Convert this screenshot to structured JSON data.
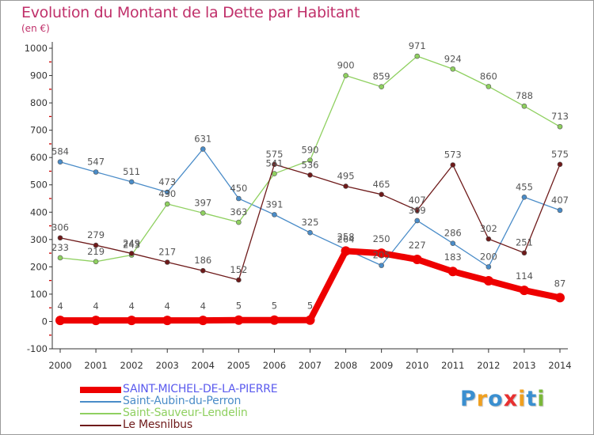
{
  "header": {
    "title": "Evolution du Montant de la Dette par Habitant",
    "subtitle": "(en €)"
  },
  "logo": {
    "text": "Proxiti",
    "colors": [
      "#3a8fd0",
      "#f0a020",
      "#3a8fd0",
      "#e83030",
      "#f0a020",
      "#3a8fd0",
      "#7ab83a"
    ]
  },
  "colors": {
    "title": "#c0306a",
    "axis": "#333333",
    "grid_tick": "#cc0000",
    "labels": "#555555"
  },
  "chart_data": {
    "type": "line",
    "title": "Evolution du Montant de la Dette par Habitant",
    "subtitle": "(en €)",
    "xlabel": "",
    "ylabel": "",
    "x": [
      "2000",
      "2001",
      "2002",
      "2003",
      "2004",
      "2005",
      "2006",
      "2007",
      "2008",
      "2009",
      "2010",
      "2011",
      "2012",
      "2013",
      "2014"
    ],
    "ylim": [
      -100,
      1000
    ],
    "yticks": [
      -100,
      0,
      100,
      200,
      300,
      400,
      500,
      600,
      700,
      800,
      900,
      1000
    ],
    "grid": false,
    "legend_position": "bottom-left",
    "series": [
      {
        "name": "SAINT-MICHEL-DE-LA-PIERRE",
        "color": "#ee0000",
        "width": 8,
        "marker": 6,
        "values": [
          4,
          4,
          4,
          4,
          4,
          5,
          5,
          5,
          258,
          250,
          227,
          183,
          149,
          114,
          87
        ],
        "labels": [
          "4",
          "4",
          "4",
          "4",
          "4",
          "5",
          "5",
          "5",
          "258",
          "250",
          "227",
          "183",
          "",
          "114",
          "87"
        ]
      },
      {
        "name": "Saint-Aubin-du-Perron",
        "color": "#4a8cc8",
        "width": 1.3,
        "marker": 3,
        "values": [
          584,
          547,
          511,
          473,
          631,
          450,
          391,
          325,
          264,
          205,
          369,
          286,
          200,
          455,
          407
        ],
        "labels": [
          "584",
          "547",
          "511",
          "473",
          "631",
          "450",
          "391",
          "325",
          "264",
          "205",
          "369",
          "286",
          "200",
          "455",
          "407"
        ]
      },
      {
        "name": "Saint-Sauveur-Lendelin",
        "color": "#8fd060",
        "width": 1.3,
        "marker": 3,
        "values": [
          233,
          219,
          243,
          430,
          397,
          363,
          541,
          590,
          900,
          859,
          971,
          924,
          860,
          788,
          713
        ],
        "labels": [
          "233",
          "219",
          "243",
          "430",
          "397",
          "363",
          "541",
          "590",
          "900",
          "859",
          "971",
          "924",
          "860",
          "788",
          "713"
        ]
      },
      {
        "name": "Le Mesnilbus",
        "color": "#6e1a1a",
        "width": 1.3,
        "marker": 3,
        "values": [
          306,
          279,
          249,
          217,
          186,
          152,
          575,
          536,
          495,
          465,
          407,
          573,
          302,
          251,
          575
        ],
        "labels": [
          "306",
          "279",
          "249",
          "217",
          "186",
          "152",
          "575",
          "536",
          "495",
          "465",
          "407",
          "573",
          "302",
          "251",
          "575"
        ]
      }
    ]
  }
}
